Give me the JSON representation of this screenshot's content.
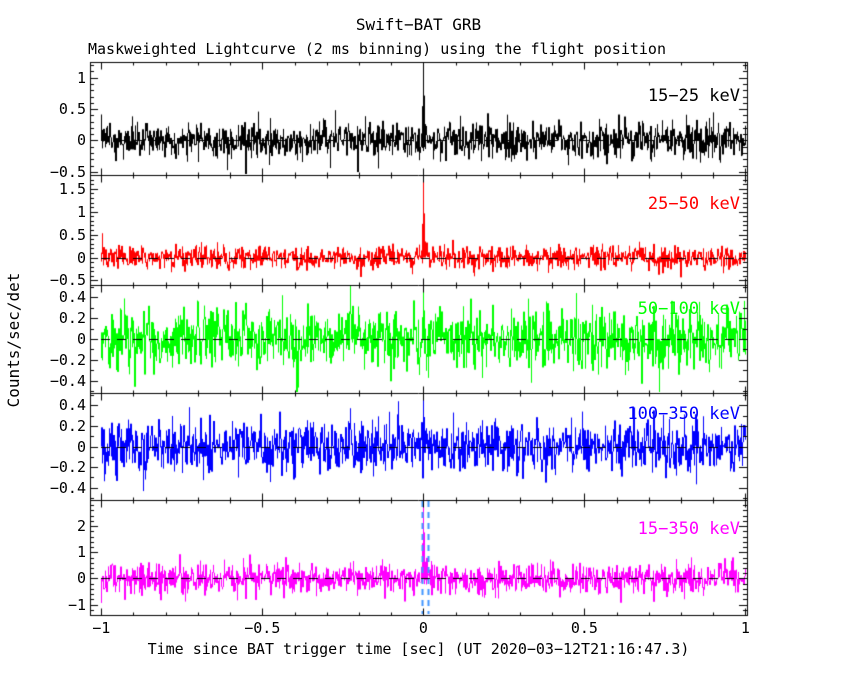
{
  "figure": {
    "title": "Swift−BAT GRB",
    "subtitle": "Maskweighted Lightcurve (2 ms binning) using the flight position",
    "x_axis_title": "Time since BAT trigger time [sec] (UT 2020−03−12T21:16:47.3)",
    "y_axis_title": "Counts/sec/det"
  },
  "chart_data": {
    "type": "line",
    "title": "Swift−BAT GRB",
    "subtitle": "Maskweighted Lightcurve (2 ms binning) using the flight position",
    "xlabel": "Time since BAT trigger time [sec] (UT 2020−03−12T21:16:47.3)",
    "ylabel": "Counts/sec/det",
    "xlim": [
      -1.035,
      1.005
    ],
    "x_tick_values": [
      -1,
      -0.5,
      0,
      0.5,
      1
    ],
    "x_tick_labels": [
      "−1",
      "−0.5",
      "0",
      "0.5",
      "1"
    ],
    "x_minor_step": 0.1,
    "binning": "2 ms",
    "trigger_time_utc": "2020-03-12T21:16:47.3",
    "grid": false,
    "panels": [
      {
        "band": "15−25 keV",
        "color": "#000000",
        "ylim": [
          -0.55,
          1.25
        ],
        "ytick_values": [
          1,
          0.5,
          0,
          -0.5
        ],
        "ytick_labels": [
          "1",
          "0.5",
          "0",
          "−0.5"
        ],
        "y_minor_step": 0.1,
        "noise_sigma": 0.15,
        "baseline": 0,
        "spike_t": 0,
        "spike_peak": 1.3,
        "seed": 7
      },
      {
        "band": "25−50 keV",
        "color": "#ff0000",
        "ylim": [
          -0.6,
          1.8
        ],
        "ytick_values": [
          1.5,
          1,
          0.5,
          0,
          -0.5
        ],
        "ytick_labels": [
          "1.5",
          "1",
          "0.5",
          "0",
          "−0.5"
        ],
        "y_minor_step": 0.1,
        "noise_sigma": 0.13,
        "baseline": 0,
        "spike_t": 0,
        "spike_peak": 1.75,
        "seed": 13
      },
      {
        "band": "50−100 keV",
        "color": "#00ff00",
        "ylim": [
          -0.52,
          0.52
        ],
        "ytick_values": [
          0.4,
          0.2,
          0,
          -0.2,
          -0.4
        ],
        "ytick_labels": [
          "0.4",
          "0.2",
          "0",
          "−0.2",
          "−0.4"
        ],
        "y_minor_step": 0.1,
        "noise_sigma": 0.15,
        "baseline": 0,
        "spike_t": 0,
        "spike_peak": 0.5,
        "seed": 21
      },
      {
        "band": "100−350 keV",
        "color": "#0000ff",
        "ylim": [
          -0.52,
          0.52
        ],
        "ytick_values": [
          0.4,
          0.2,
          0,
          -0.2,
          -0.4
        ],
        "ytick_labels": [
          "0.4",
          "0.2",
          "0",
          "−0.2",
          "−0.4"
        ],
        "y_minor_step": 0.1,
        "noise_sigma": 0.13,
        "baseline": 0,
        "spike_t": 0,
        "spike_peak": 0.52,
        "seed": 29
      },
      {
        "band": "15−350 keV",
        "color": "#ff00ff",
        "ylim": [
          -1.4,
          3.0
        ],
        "ytick_values": [
          2,
          1,
          0,
          -1
        ],
        "ytick_labels": [
          "2",
          "1",
          "0",
          "−1"
        ],
        "y_minor_step": 0.2,
        "noise_sigma": 0.3,
        "baseline": 0,
        "spike_t": 0,
        "spike_peak": 3.2,
        "seed": 35
      }
    ],
    "zero_line": {
      "style": "dashed",
      "color": "#000000"
    },
    "trigger_markers": {
      "panel_band": "15−350 keV",
      "times": [
        0,
        0.018
      ],
      "color": "#4196ff",
      "style": "dashed"
    }
  }
}
